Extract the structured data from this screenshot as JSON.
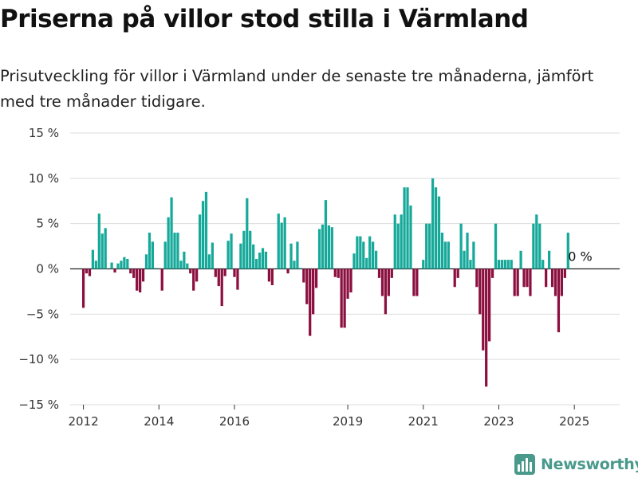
{
  "title": "Priserna på villor stod stilla i Värmland",
  "subtitle": "Prisutveckling för villor i Värmland under de senaste tre månaderna, jämfört med tre månader tidigare.",
  "brand": {
    "name": "Newsworthy",
    "icon": "newsworthy-logo-icon"
  },
  "colors": {
    "positive": "#16a99a",
    "negative": "#8b0f3f",
    "brand": "#4a9a8c"
  },
  "chart_data": {
    "type": "bar",
    "title": "Priserna på villor stod stilla i Värmland",
    "subtitle": "Prisutveckling för villor i Värmland under de senaste tre månaderna, jämfört med tre månader tidigare.",
    "xlabel": "",
    "ylabel": "",
    "ylim": [
      -15,
      15
    ],
    "xlim": [
      2011.65,
      2026.2
    ],
    "yticks": [
      {
        "value": 15,
        "label": "15 %"
      },
      {
        "value": 10,
        "label": "10 %"
      },
      {
        "value": 5,
        "label": "5 %"
      },
      {
        "value": 0,
        "label": "0 %"
      },
      {
        "value": -5,
        "label": "−5 %"
      },
      {
        "value": -10,
        "label": "−10 %"
      },
      {
        "value": -15,
        "label": "−15 %"
      }
    ],
    "xticks": [
      "2012",
      "2014",
      "2016",
      "2019",
      "2021",
      "2023",
      "2025"
    ],
    "grid": true,
    "last_value_label": "0 %",
    "series": [
      {
        "values": [
          [
            "2012-01",
            -4.3
          ],
          [
            "2012-02",
            -0.5
          ],
          [
            "2012-03",
            -0.8
          ],
          [
            "2012-04",
            2.1
          ],
          [
            "2012-05",
            0.9
          ],
          [
            "2012-06",
            6.1
          ],
          [
            "2012-07",
            3.9
          ],
          [
            "2012-08",
            4.5
          ],
          [
            "2012-10",
            0.7
          ],
          [
            "2012-11",
            -0.4
          ],
          [
            "2012-12",
            0.6
          ],
          [
            "2013-01",
            0.9
          ],
          [
            "2013-02",
            1.3
          ],
          [
            "2013-03",
            1.1
          ],
          [
            "2013-04",
            -0.5
          ],
          [
            "2013-05",
            -1.0
          ],
          [
            "2013-06",
            -2.4
          ],
          [
            "2013-07",
            -2.6
          ],
          [
            "2013-08",
            -1.4
          ],
          [
            "2013-09",
            1.6
          ],
          [
            "2013-10",
            4.0
          ],
          [
            "2013-11",
            3.0
          ],
          [
            "2013-12",
            0.1
          ],
          [
            "2014-02",
            -2.4
          ],
          [
            "2014-03",
            3.0
          ],
          [
            "2014-04",
            5.7
          ],
          [
            "2014-05",
            7.9
          ],
          [
            "2014-06",
            4.0
          ],
          [
            "2014-07",
            4.0
          ],
          [
            "2014-08",
            0.9
          ],
          [
            "2014-09",
            1.9
          ],
          [
            "2014-10",
            0.6
          ],
          [
            "2014-11",
            -0.5
          ],
          [
            "2014-12",
            -2.4
          ],
          [
            "2015-01",
            -1.4
          ],
          [
            "2015-02",
            6.0
          ],
          [
            "2015-03",
            7.5
          ],
          [
            "2015-04",
            8.5
          ],
          [
            "2015-05",
            1.6
          ],
          [
            "2015-06",
            2.9
          ],
          [
            "2015-07",
            -0.9
          ],
          [
            "2015-08",
            -1.9
          ],
          [
            "2015-09",
            -4.1
          ],
          [
            "2015-10",
            -0.8
          ],
          [
            "2015-11",
            3.1
          ],
          [
            "2015-12",
            3.9
          ],
          [
            "2016-01",
            -0.9
          ],
          [
            "2016-02",
            -2.3
          ],
          [
            "2016-03",
            2.8
          ],
          [
            "2016-04",
            4.2
          ],
          [
            "2016-05",
            7.8
          ],
          [
            "2016-06",
            4.2
          ],
          [
            "2016-07",
            2.7
          ],
          [
            "2016-08",
            1.1
          ],
          [
            "2016-09",
            1.8
          ],
          [
            "2016-10",
            2.3
          ],
          [
            "2016-11",
            1.9
          ],
          [
            "2016-12",
            -1.4
          ],
          [
            "2017-01",
            -1.8
          ],
          [
            "2017-03",
            6.1
          ],
          [
            "2017-04",
            5.1
          ],
          [
            "2017-05",
            5.7
          ],
          [
            "2017-06",
            -0.5
          ],
          [
            "2017-07",
            2.8
          ],
          [
            "2017-08",
            0.9
          ],
          [
            "2017-09",
            3.0
          ],
          [
            "2017-10",
            0.1
          ],
          [
            "2017-11",
            -1.5
          ],
          [
            "2017-12",
            -3.9
          ],
          [
            "2018-01",
            -7.4
          ],
          [
            "2018-02",
            -5.0
          ],
          [
            "2018-03",
            -2.1
          ],
          [
            "2018-04",
            4.4
          ],
          [
            "2018-05",
            4.9
          ],
          [
            "2018-06",
            7.6
          ],
          [
            "2018-07",
            4.8
          ],
          [
            "2018-08",
            4.6
          ],
          [
            "2018-09",
            -0.9
          ],
          [
            "2018-10",
            -1.0
          ],
          [
            "2018-11",
            -6.5
          ],
          [
            "2018-12",
            -6.5
          ],
          [
            "2019-01",
            -3.3
          ],
          [
            "2019-02",
            -2.6
          ],
          [
            "2019-03",
            1.7
          ],
          [
            "2019-04",
            3.6
          ],
          [
            "2019-05",
            3.6
          ],
          [
            "2019-06",
            3.0
          ],
          [
            "2019-07",
            1.2
          ],
          [
            "2019-08",
            3.6
          ],
          [
            "2019-09",
            3.0
          ],
          [
            "2019-10",
            2.0
          ],
          [
            "2019-11",
            -1.0
          ],
          [
            "2019-12",
            -3.0
          ],
          [
            "2020-01",
            -5.0
          ],
          [
            "2020-02",
            -3.0
          ],
          [
            "2020-03",
            -1.0
          ],
          [
            "2020-04",
            6.0
          ],
          [
            "2020-05",
            5.0
          ],
          [
            "2020-06",
            6.0
          ],
          [
            "2020-07",
            9.0
          ],
          [
            "2020-08",
            9.0
          ],
          [
            "2020-09",
            7.0
          ],
          [
            "2020-10",
            -3.0
          ],
          [
            "2020-11",
            -3.0
          ],
          [
            "2021-01",
            1.0
          ],
          [
            "2021-02",
            5.0
          ],
          [
            "2021-03",
            5.0
          ],
          [
            "2021-04",
            10.0
          ],
          [
            "2021-05",
            9.0
          ],
          [
            "2021-06",
            8.0
          ],
          [
            "2021-07",
            4.0
          ],
          [
            "2021-08",
            3.0
          ],
          [
            "2021-09",
            3.0
          ],
          [
            "2021-11",
            -2.0
          ],
          [
            "2021-12",
            -1.0
          ],
          [
            "2022-01",
            5.0
          ],
          [
            "2022-02",
            2.0
          ],
          [
            "2022-03",
            4.0
          ],
          [
            "2022-04",
            1.0
          ],
          [
            "2022-05",
            3.0
          ],
          [
            "2022-06",
            -2.0
          ],
          [
            "2022-07",
            -5.0
          ],
          [
            "2022-08",
            -9.0
          ],
          [
            "2022-09",
            -13.0
          ],
          [
            "2022-10",
            -8.0
          ],
          [
            "2022-11",
            -1.0
          ],
          [
            "2022-12",
            5.0
          ],
          [
            "2023-01",
            1.0
          ],
          [
            "2023-02",
            1.0
          ],
          [
            "2023-03",
            1.0
          ],
          [
            "2023-04",
            1.0
          ],
          [
            "2023-05",
            1.0
          ],
          [
            "2023-06",
            -3.0
          ],
          [
            "2023-07",
            -3.0
          ],
          [
            "2023-08",
            2.0
          ],
          [
            "2023-09",
            -2.0
          ],
          [
            "2023-10",
            -2.0
          ],
          [
            "2023-11",
            -3.0
          ],
          [
            "2023-12",
            5.0
          ],
          [
            "2024-01",
            6.0
          ],
          [
            "2024-02",
            5.0
          ],
          [
            "2024-03",
            1.0
          ],
          [
            "2024-04",
            -2.0
          ],
          [
            "2024-05",
            2.0
          ],
          [
            "2024-06",
            -2.0
          ],
          [
            "2024-07",
            -3.0
          ],
          [
            "2024-08",
            -7.0
          ],
          [
            "2024-09",
            -3.0
          ],
          [
            "2024-10",
            -1.0
          ],
          [
            "2024-11",
            4.0
          ],
          [
            "2024-12",
            0.0
          ]
        ]
      }
    ]
  }
}
